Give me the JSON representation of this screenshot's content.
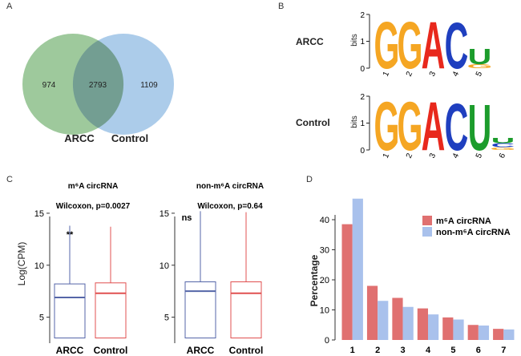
{
  "panels": {
    "A": {
      "letter": "A",
      "venn": {
        "left_only": "974",
        "overlap": "2793",
        "right_only": "1109",
        "left_label": "ARCC",
        "right_label": "Control",
        "left_color": "#8dbf8b",
        "right_color": "#9dc3e6"
      }
    },
    "B": {
      "letter": "B",
      "logos": [
        {
          "label": "ARCC",
          "ylabel": "bits",
          "yticks": [
            "0",
            "1",
            "2"
          ],
          "positions": [
            "1",
            "2",
            "3",
            "4",
            "5"
          ],
          "letters": [
            {
              "pos": 1,
              "letter": "G",
              "height_bits": 1.8,
              "color": "#f5a623"
            },
            {
              "pos": 2,
              "letter": "G",
              "height_bits": 1.8,
              "color": "#f5a623"
            },
            {
              "pos": 3,
              "letter": "A",
              "height_bits": 1.8,
              "color": "#e8281c"
            },
            {
              "pos": 4,
              "letter": "C",
              "height_bits": 1.75,
              "color": "#1f3fbf"
            },
            {
              "pos": 5,
              "letter": "U",
              "height_bits": 0.6,
              "color": "#1c9c2c"
            },
            {
              "pos": 5,
              "letter": "G",
              "height_bits": 0.15,
              "color": "#f5a623"
            }
          ]
        },
        {
          "label": "Control",
          "ylabel": "bits",
          "yticks": [
            "0",
            "1",
            "2"
          ],
          "positions": [
            "1",
            "2",
            "3",
            "4",
            "5",
            "6"
          ],
          "letters": [
            {
              "pos": 1,
              "letter": "G",
              "height_bits": 1.85,
              "color": "#f5a623"
            },
            {
              "pos": 2,
              "letter": "G",
              "height_bits": 1.85,
              "color": "#f5a623"
            },
            {
              "pos": 3,
              "letter": "A",
              "height_bits": 1.85,
              "color": "#e8281c"
            },
            {
              "pos": 4,
              "letter": "C",
              "height_bits": 1.8,
              "color": "#1f3fbf"
            },
            {
              "pos": 5,
              "letter": "U",
              "height_bits": 1.75,
              "color": "#1c9c2c"
            },
            {
              "pos": 6,
              "letter": "U",
              "height_bits": 0.2,
              "color": "#1c9c2c"
            },
            {
              "pos": 6,
              "letter": "C",
              "height_bits": 0.15,
              "color": "#1f3fbf"
            },
            {
              "pos": 6,
              "letter": "G",
              "height_bits": 0.1,
              "color": "#f5a623"
            }
          ]
        }
      ]
    },
    "C": {
      "letter": "C"
    },
    "D": {
      "letter": "D"
    }
  },
  "chart_data": [
    {
      "type": "box",
      "title": "m⁶A circRNA",
      "subtitle": "Wilcoxon, p=0.0027",
      "ylabel": "Log(CPM)",
      "ylim": [
        2.5,
        17
      ],
      "yticks": [
        "5",
        "10",
        "15"
      ],
      "ytick_values": [
        5,
        10,
        15
      ],
      "categories": [
        "ARCC",
        "Control"
      ],
      "colors": [
        "#5566a8",
        "#e05050"
      ],
      "boxes": [
        {
          "min": 3.0,
          "q1": 3.0,
          "median": 6.9,
          "q3": 8.2,
          "max": 13.8
        },
        {
          "min": 3.0,
          "q1": 3.0,
          "median": 7.3,
          "q3": 8.3,
          "max": 13.7
        }
      ],
      "annotation": "**"
    },
    {
      "type": "box",
      "title": "non-m⁶A circRNA",
      "subtitle": "Wilcoxon, p=0.64",
      "ylabel": "",
      "ylim": [
        2.5,
        17
      ],
      "yticks": [
        "5",
        "10",
        "15"
      ],
      "ytick_values": [
        5,
        10,
        15
      ],
      "categories": [
        "ARCC",
        "Control"
      ],
      "colors": [
        "#5566a8",
        "#e05050"
      ],
      "boxes": [
        {
          "min": 3.0,
          "q1": 3.0,
          "median": 7.5,
          "q3": 8.4,
          "max": 15.2
        },
        {
          "min": 3.0,
          "q1": 3.0,
          "median": 7.3,
          "q3": 8.4,
          "max": 15.1
        }
      ],
      "annotation": "ns"
    },
    {
      "type": "bar",
      "title": "",
      "xlabel": "",
      "ylabel": "Percentage",
      "ylim": [
        0,
        48
      ],
      "yticks": [
        "0",
        "10",
        "20",
        "30",
        "40"
      ],
      "ytick_values": [
        0,
        10,
        20,
        30,
        40
      ],
      "categories": [
        "1",
        "2",
        "3",
        "4",
        "5",
        "6",
        "7"
      ],
      "legend_position": "top-right",
      "series": [
        {
          "name": "m⁶A circRNA",
          "color": "#e07070",
          "values": [
            38.5,
            18,
            14,
            10.5,
            7.5,
            5,
            3.7
          ]
        },
        {
          "name": "non-m⁶A circRNA",
          "color": "#a9c1ec",
          "values": [
            47,
            13,
            11,
            8.5,
            6.8,
            4.8,
            3.5
          ]
        }
      ]
    }
  ]
}
